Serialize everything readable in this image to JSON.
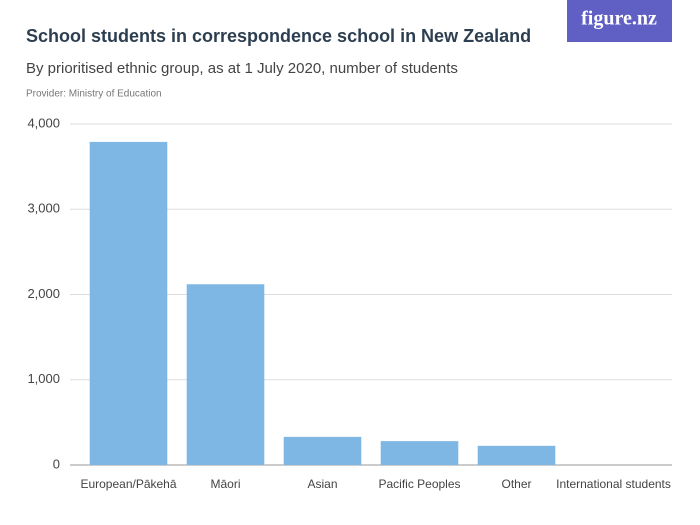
{
  "logo": "figure.nz",
  "chart_data": {
    "type": "bar",
    "title": "School students in correspondence school in New Zealand",
    "subtitle": "By prioritised ethnic group, as at 1 July 2020, number of students",
    "source": "Provider: Ministry of Education",
    "categories": [
      "European/Pākehā",
      "Māori",
      "Asian",
      "Pacific Peoples",
      "Other",
      "International students"
    ],
    "values": [
      3790,
      2120,
      330,
      280,
      225,
      0
    ],
    "color": "#7eb6e4",
    "ylim": [
      0,
      4000
    ],
    "yticks": [
      0,
      {
        "value": 1000,
        "label": "1,000"
      },
      {
        "value": 2000,
        "label": "2,000"
      },
      {
        "value": 3000,
        "label": "3,000"
      },
      {
        "value": 4000,
        "label": "4,000"
      }
    ],
    "grid": true
  }
}
